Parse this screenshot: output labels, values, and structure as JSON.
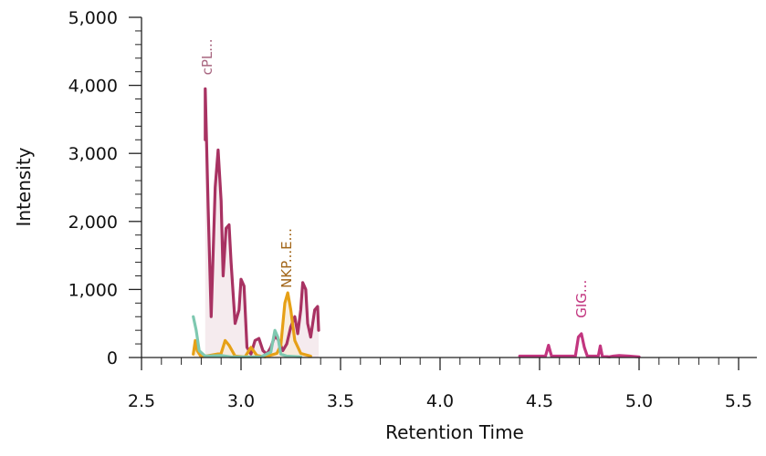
{
  "chart_data": {
    "type": "line",
    "xlabel": "Retention Time",
    "ylabel": "Intensity",
    "xlim": [
      2.5,
      5.6
    ],
    "ylim": [
      0,
      5000
    ],
    "x_ticks": [
      {
        "value": 2.5,
        "label": "2.5"
      },
      {
        "value": 3.0,
        "label": "3.0"
      },
      {
        "value": 3.5,
        "label": "3.5"
      },
      {
        "value": 4.0,
        "label": "4.0"
      },
      {
        "value": 4.5,
        "label": "4.5"
      },
      {
        "value": 5.0,
        "label": "5.0"
      },
      {
        "value": 5.5,
        "label": "5.5"
      }
    ],
    "y_ticks": [
      {
        "value": 0,
        "label": "0"
      },
      {
        "value": 1000,
        "label": "1,000"
      },
      {
        "value": 2000,
        "label": "2,000"
      },
      {
        "value": 3000,
        "label": "3,000"
      },
      {
        "value": 4000,
        "label": "4,000"
      },
      {
        "value": 5000,
        "label": "5,000"
      }
    ],
    "grid": false,
    "legend": "none",
    "series": [
      {
        "color": "#a83262",
        "fill": "#f2e6ea",
        "points": [
          [
            2.82,
            3200
          ],
          [
            2.82,
            3950
          ],
          [
            2.835,
            2200
          ],
          [
            2.85,
            600
          ],
          [
            2.87,
            2500
          ],
          [
            2.885,
            3050
          ],
          [
            2.9,
            2300
          ],
          [
            2.91,
            1200
          ],
          [
            2.925,
            1900
          ],
          [
            2.94,
            1950
          ],
          [
            2.95,
            1400
          ],
          [
            2.97,
            500
          ],
          [
            2.99,
            700
          ],
          [
            3.0,
            1150
          ],
          [
            3.015,
            1050
          ],
          [
            3.03,
            150
          ],
          [
            3.05,
            50
          ],
          [
            3.07,
            250
          ],
          [
            3.09,
            280
          ],
          [
            3.11,
            100
          ],
          [
            3.13,
            50
          ],
          [
            3.15,
            150
          ],
          [
            3.17,
            320
          ],
          [
            3.19,
            250
          ],
          [
            3.21,
            100
          ],
          [
            3.23,
            200
          ],
          [
            3.25,
            450
          ],
          [
            3.27,
            600
          ],
          [
            3.285,
            350
          ],
          [
            3.3,
            700
          ],
          [
            3.31,
            1100
          ],
          [
            3.325,
            1000
          ],
          [
            3.335,
            500
          ],
          [
            3.35,
            300
          ],
          [
            3.37,
            700
          ],
          [
            3.385,
            750
          ],
          [
            3.39,
            400
          ]
        ]
      },
      {
        "color": "#e6a016",
        "fill": "#f8ead6",
        "points": [
          [
            2.76,
            50
          ],
          [
            2.77,
            250
          ],
          [
            2.78,
            100
          ],
          [
            2.8,
            10
          ],
          [
            2.84,
            30
          ],
          [
            2.9,
            60
          ],
          [
            2.92,
            250
          ],
          [
            2.94,
            180
          ],
          [
            2.97,
            20
          ],
          [
            3.02,
            10
          ],
          [
            3.05,
            150
          ],
          [
            3.08,
            30
          ],
          [
            3.12,
            10
          ],
          [
            3.18,
            60
          ],
          [
            3.2,
            180
          ],
          [
            3.22,
            800
          ],
          [
            3.235,
            950
          ],
          [
            3.25,
            700
          ],
          [
            3.27,
            250
          ],
          [
            3.3,
            60
          ],
          [
            3.35,
            20
          ]
        ]
      },
      {
        "color": "#7ec8b0",
        "fill": "none",
        "points": [
          [
            2.76,
            600
          ],
          [
            2.775,
            400
          ],
          [
            2.79,
            100
          ],
          [
            2.82,
            20
          ],
          [
            2.9,
            30
          ],
          [
            2.95,
            10
          ],
          [
            3.1,
            10
          ],
          [
            3.15,
            80
          ],
          [
            3.17,
            400
          ],
          [
            3.185,
            300
          ],
          [
            3.2,
            50
          ],
          [
            3.23,
            20
          ],
          [
            3.3,
            10
          ]
        ]
      },
      {
        "color": "#c2357f",
        "fill": "none",
        "points": [
          [
            4.4,
            20
          ],
          [
            4.53,
            20
          ],
          [
            4.545,
            180
          ],
          [
            4.56,
            20
          ],
          [
            4.68,
            20
          ],
          [
            4.695,
            300
          ],
          [
            4.71,
            350
          ],
          [
            4.725,
            150
          ],
          [
            4.74,
            20
          ],
          [
            4.795,
            20
          ],
          [
            4.805,
            170
          ],
          [
            4.815,
            20
          ],
          [
            4.85,
            10
          ],
          [
            4.87,
            20
          ],
          [
            4.9,
            30
          ],
          [
            4.95,
            20
          ],
          [
            5.0,
            10
          ]
        ]
      }
    ],
    "annotations": [
      {
        "text": "cPL...",
        "x": 2.83,
        "y": 4150,
        "color": "#a86680"
      },
      {
        "text": "NKP...E...",
        "x": 3.23,
        "y": 1020,
        "color": "#a26518"
      },
      {
        "text": "GIG...",
        "x": 4.71,
        "y": 580,
        "color": "#c2357f"
      }
    ]
  }
}
